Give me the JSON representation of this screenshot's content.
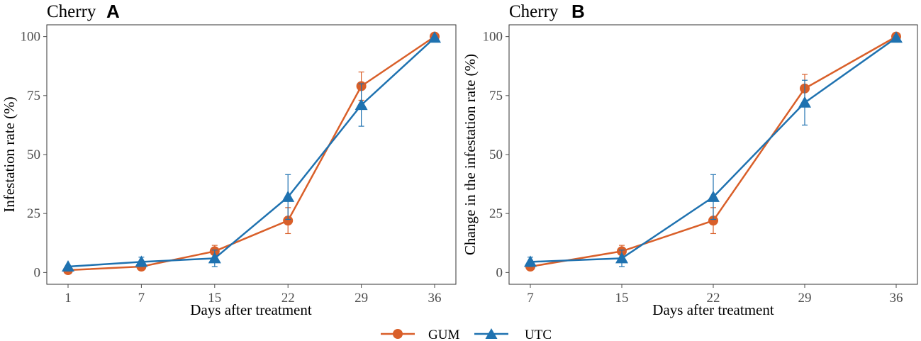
{
  "colors": {
    "GUM": "#d95f29",
    "UTC": "#1f72b0",
    "axis": "#4d4d4d"
  },
  "legend": [
    {
      "name": "GUM",
      "marker": "circle"
    },
    {
      "name": "UTC",
      "marker": "triangle"
    }
  ],
  "chart_data": [
    {
      "type": "line",
      "title": "Cherry",
      "panel_label": "A",
      "xlabel": "Days after treatment",
      "ylabel": "Infestation rate (%)",
      "x": [
        1,
        7,
        15,
        22,
        29,
        36
      ],
      "ylim": [
        -5,
        105
      ],
      "yticks": [
        0,
        25,
        50,
        75,
        100
      ],
      "series": [
        {
          "name": "GUM",
          "values": [
            1.0,
            2.5,
            9.0,
            22.0,
            79.0,
            100.0
          ],
          "errors": [
            0,
            0,
            2.5,
            5.5,
            6.0,
            0
          ]
        },
        {
          "name": "UTC",
          "values": [
            2.5,
            4.5,
            6.0,
            32.0,
            71.0,
            99.5
          ],
          "errors": [
            0,
            2.0,
            3.5,
            9.5,
            9.0,
            0
          ]
        }
      ]
    },
    {
      "type": "line",
      "title": "Cherry",
      "panel_label": "B",
      "xlabel": "Days after treatment",
      "ylabel": "Change in the infestation rate (%)",
      "x": [
        7,
        15,
        22,
        29,
        36
      ],
      "ylim": [
        -5,
        105
      ],
      "yticks": [
        0,
        25,
        50,
        75,
        100
      ],
      "series": [
        {
          "name": "GUM",
          "values": [
            2.5,
            9.0,
            22.0,
            78.0,
            100.0
          ],
          "errors": [
            0,
            2.5,
            5.5,
            6.0,
            0
          ]
        },
        {
          "name": "UTC",
          "values": [
            4.5,
            6.0,
            32.0,
            72.0,
            99.5
          ],
          "errors": [
            2.0,
            3.5,
            9.5,
            9.5,
            0
          ]
        }
      ]
    }
  ]
}
